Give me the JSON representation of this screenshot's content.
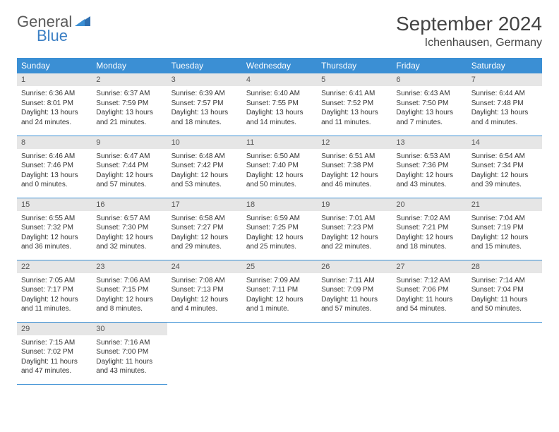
{
  "logo": {
    "text1": "General",
    "text2": "Blue"
  },
  "title": "September 2024",
  "location": "Ichenhausen, Germany",
  "colors": {
    "header_bg": "#3b8fd4",
    "header_text": "#ffffff",
    "daynum_bg": "#e6e6e6",
    "daynum_text": "#555555",
    "body_text": "#333333",
    "row_border": "#3b8fd4",
    "logo_gray": "#5a5a5a",
    "logo_blue": "#3b7fc4"
  },
  "day_headers": [
    "Sunday",
    "Monday",
    "Tuesday",
    "Wednesday",
    "Thursday",
    "Friday",
    "Saturday"
  ],
  "weeks": [
    [
      {
        "n": "1",
        "sr": "Sunrise: 6:36 AM",
        "ss": "Sunset: 8:01 PM",
        "dl": "Daylight: 13 hours and 24 minutes."
      },
      {
        "n": "2",
        "sr": "Sunrise: 6:37 AM",
        "ss": "Sunset: 7:59 PM",
        "dl": "Daylight: 13 hours and 21 minutes."
      },
      {
        "n": "3",
        "sr": "Sunrise: 6:39 AM",
        "ss": "Sunset: 7:57 PM",
        "dl": "Daylight: 13 hours and 18 minutes."
      },
      {
        "n": "4",
        "sr": "Sunrise: 6:40 AM",
        "ss": "Sunset: 7:55 PM",
        "dl": "Daylight: 13 hours and 14 minutes."
      },
      {
        "n": "5",
        "sr": "Sunrise: 6:41 AM",
        "ss": "Sunset: 7:52 PM",
        "dl": "Daylight: 13 hours and 11 minutes."
      },
      {
        "n": "6",
        "sr": "Sunrise: 6:43 AM",
        "ss": "Sunset: 7:50 PM",
        "dl": "Daylight: 13 hours and 7 minutes."
      },
      {
        "n": "7",
        "sr": "Sunrise: 6:44 AM",
        "ss": "Sunset: 7:48 PM",
        "dl": "Daylight: 13 hours and 4 minutes."
      }
    ],
    [
      {
        "n": "8",
        "sr": "Sunrise: 6:46 AM",
        "ss": "Sunset: 7:46 PM",
        "dl": "Daylight: 13 hours and 0 minutes."
      },
      {
        "n": "9",
        "sr": "Sunrise: 6:47 AM",
        "ss": "Sunset: 7:44 PM",
        "dl": "Daylight: 12 hours and 57 minutes."
      },
      {
        "n": "10",
        "sr": "Sunrise: 6:48 AM",
        "ss": "Sunset: 7:42 PM",
        "dl": "Daylight: 12 hours and 53 minutes."
      },
      {
        "n": "11",
        "sr": "Sunrise: 6:50 AM",
        "ss": "Sunset: 7:40 PM",
        "dl": "Daylight: 12 hours and 50 minutes."
      },
      {
        "n": "12",
        "sr": "Sunrise: 6:51 AM",
        "ss": "Sunset: 7:38 PM",
        "dl": "Daylight: 12 hours and 46 minutes."
      },
      {
        "n": "13",
        "sr": "Sunrise: 6:53 AM",
        "ss": "Sunset: 7:36 PM",
        "dl": "Daylight: 12 hours and 43 minutes."
      },
      {
        "n": "14",
        "sr": "Sunrise: 6:54 AM",
        "ss": "Sunset: 7:34 PM",
        "dl": "Daylight: 12 hours and 39 minutes."
      }
    ],
    [
      {
        "n": "15",
        "sr": "Sunrise: 6:55 AM",
        "ss": "Sunset: 7:32 PM",
        "dl": "Daylight: 12 hours and 36 minutes."
      },
      {
        "n": "16",
        "sr": "Sunrise: 6:57 AM",
        "ss": "Sunset: 7:30 PM",
        "dl": "Daylight: 12 hours and 32 minutes."
      },
      {
        "n": "17",
        "sr": "Sunrise: 6:58 AM",
        "ss": "Sunset: 7:27 PM",
        "dl": "Daylight: 12 hours and 29 minutes."
      },
      {
        "n": "18",
        "sr": "Sunrise: 6:59 AM",
        "ss": "Sunset: 7:25 PM",
        "dl": "Daylight: 12 hours and 25 minutes."
      },
      {
        "n": "19",
        "sr": "Sunrise: 7:01 AM",
        "ss": "Sunset: 7:23 PM",
        "dl": "Daylight: 12 hours and 22 minutes."
      },
      {
        "n": "20",
        "sr": "Sunrise: 7:02 AM",
        "ss": "Sunset: 7:21 PM",
        "dl": "Daylight: 12 hours and 18 minutes."
      },
      {
        "n": "21",
        "sr": "Sunrise: 7:04 AM",
        "ss": "Sunset: 7:19 PM",
        "dl": "Daylight: 12 hours and 15 minutes."
      }
    ],
    [
      {
        "n": "22",
        "sr": "Sunrise: 7:05 AM",
        "ss": "Sunset: 7:17 PM",
        "dl": "Daylight: 12 hours and 11 minutes."
      },
      {
        "n": "23",
        "sr": "Sunrise: 7:06 AM",
        "ss": "Sunset: 7:15 PM",
        "dl": "Daylight: 12 hours and 8 minutes."
      },
      {
        "n": "24",
        "sr": "Sunrise: 7:08 AM",
        "ss": "Sunset: 7:13 PM",
        "dl": "Daylight: 12 hours and 4 minutes."
      },
      {
        "n": "25",
        "sr": "Sunrise: 7:09 AM",
        "ss": "Sunset: 7:11 PM",
        "dl": "Daylight: 12 hours and 1 minute."
      },
      {
        "n": "26",
        "sr": "Sunrise: 7:11 AM",
        "ss": "Sunset: 7:09 PM",
        "dl": "Daylight: 11 hours and 57 minutes."
      },
      {
        "n": "27",
        "sr": "Sunrise: 7:12 AM",
        "ss": "Sunset: 7:06 PM",
        "dl": "Daylight: 11 hours and 54 minutes."
      },
      {
        "n": "28",
        "sr": "Sunrise: 7:14 AM",
        "ss": "Sunset: 7:04 PM",
        "dl": "Daylight: 11 hours and 50 minutes."
      }
    ],
    [
      {
        "n": "29",
        "sr": "Sunrise: 7:15 AM",
        "ss": "Sunset: 7:02 PM",
        "dl": "Daylight: 11 hours and 47 minutes."
      },
      {
        "n": "30",
        "sr": "Sunrise: 7:16 AM",
        "ss": "Sunset: 7:00 PM",
        "dl": "Daylight: 11 hours and 43 minutes."
      },
      null,
      null,
      null,
      null,
      null
    ]
  ]
}
